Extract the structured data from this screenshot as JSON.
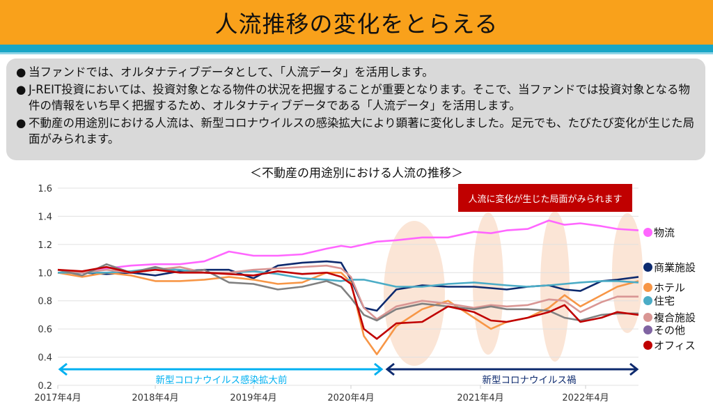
{
  "header": {
    "title": "人流推移の変化をとらえる"
  },
  "bullets": [
    {
      "mark": "●",
      "text": "当ファンドでは、オルタナティブデータとして、「人流データ」を活用します。"
    },
    {
      "mark": "●",
      "text": "J-REIT投資においては、投資対象となる物件の状況を把握することが重要となります。そこで、当ファンドでは投資対象となる物件の情報をいち早く把握するため、オルタナティブデータである「人流データ」を活用します。"
    },
    {
      "mark": "●",
      "text": "不動産の用途別における人流は、新型コロナウイルスの感染拡大により顕著に変化しました。足元でも、たびたび変化が生じた局面がみられます。"
    }
  ],
  "chart_data": {
    "type": "line",
    "title": "＜不動産の用途別における人流の推移＞",
    "annotation": "人流に変化が生じた局面がみられます",
    "period_labels": {
      "before": "新型コロナウイルス感染拡大前",
      "during": "新型コロナウイルス禍"
    },
    "ylim": [
      0.2,
      1.6
    ],
    "yticks": [
      "0.2",
      "0.4",
      "0.6",
      "0.8",
      "1.0",
      "1.2",
      "1.4",
      "1.6"
    ],
    "xticks": [
      "2017年4月",
      "2018年4月",
      "2019年4月",
      "2020年4月",
      "2021年4月",
      "2022年4月"
    ],
    "x": [
      2017.25,
      2017.5,
      2017.75,
      2018.0,
      2018.25,
      2018.5,
      2018.75,
      2019.0,
      2019.25,
      2019.5,
      2019.75,
      2020.0,
      2020.15,
      2020.25,
      2020.35,
      2020.45,
      2020.6,
      2020.8,
      2021.0,
      2021.2,
      2021.35,
      2021.5,
      2021.7,
      2021.9,
      2022.05,
      2022.2,
      2022.4,
      2022.55,
      2022.75
    ],
    "series": [
      {
        "name": "物流",
        "color": "#ff66ff",
        "legend_color": "#ff66ff",
        "values": [
          1.0,
          1.0,
          1.03,
          1.05,
          1.06,
          1.06,
          1.08,
          1.15,
          1.12,
          1.12,
          1.13,
          1.17,
          1.19,
          1.18,
          1.2,
          1.22,
          1.23,
          1.25,
          1.25,
          1.29,
          1.28,
          1.3,
          1.31,
          1.37,
          1.34,
          1.35,
          1.33,
          1.31,
          1.3
        ]
      },
      {
        "name": "商業施設",
        "color": "#0d2a6e",
        "legend_color": "#0d2a6e",
        "values": [
          1.0,
          1.0,
          0.99,
          1.0,
          0.98,
          1.01,
          1.02,
          1.02,
          0.96,
          1.05,
          1.07,
          1.08,
          1.07,
          0.95,
          0.75,
          0.73,
          0.88,
          0.91,
          0.9,
          0.9,
          0.89,
          0.88,
          0.9,
          0.91,
          0.88,
          0.87,
          0.94,
          0.95,
          0.97
        ]
      },
      {
        "name": "ホテル",
        "color": "#f79646",
        "legend_color": "#f79646",
        "values": [
          1.0,
          0.97,
          1.0,
          0.98,
          0.94,
          0.94,
          0.95,
          0.97,
          0.95,
          0.92,
          0.93,
          1.0,
          1.0,
          0.93,
          0.55,
          0.42,
          0.62,
          0.74,
          0.8,
          0.68,
          0.6,
          0.65,
          0.68,
          0.75,
          0.84,
          0.76,
          0.84,
          0.9,
          0.94
        ]
      },
      {
        "name": "住宅",
        "color": "#4bacc6",
        "legend_color": "#4bacc6",
        "values": [
          1.0,
          1.0,
          1.0,
          1.01,
          1.03,
          1.02,
          1.0,
          1.0,
          1.01,
          0.99,
          0.96,
          0.95,
          0.94,
          0.95,
          0.95,
          0.93,
          0.9,
          0.9,
          0.92,
          0.93,
          0.92,
          0.91,
          0.9,
          0.91,
          0.92,
          0.93,
          0.94,
          0.94,
          0.93
        ]
      },
      {
        "name": "複合施設",
        "color": "#d99694",
        "legend_color": "#d99694",
        "values": [
          1.02,
          1.0,
          1.02,
          1.0,
          1.02,
          1.04,
          1.0,
          1.0,
          1.02,
          1.03,
          1.04,
          1.05,
          1.03,
          0.97,
          0.75,
          0.67,
          0.76,
          0.8,
          0.78,
          0.75,
          0.77,
          0.76,
          0.77,
          0.81,
          0.8,
          0.72,
          0.79,
          0.83,
          0.83
        ]
      },
      {
        "name": "その他",
        "color": "#808080",
        "legend_color": "#8064a2",
        "values": [
          1.02,
          0.98,
          1.06,
          1.0,
          1.04,
          1.0,
          1.02,
          0.93,
          0.92,
          0.88,
          0.9,
          0.94,
          0.9,
          0.82,
          0.7,
          0.66,
          0.74,
          0.78,
          0.76,
          0.74,
          0.76,
          0.74,
          0.74,
          0.73,
          0.68,
          0.66,
          0.7,
          0.71,
          0.71
        ]
      },
      {
        "name": "オフィス",
        "color": "#c00000",
        "legend_color": "#c00000",
        "values": [
          1.02,
          1.01,
          1.04,
          1.0,
          1.02,
          1.0,
          1.0,
          0.99,
          0.98,
          1.01,
          0.99,
          1.0,
          0.97,
          0.92,
          0.6,
          0.53,
          0.64,
          0.65,
          0.76,
          0.72,
          0.66,
          0.65,
          0.68,
          0.72,
          0.77,
          0.65,
          0.68,
          0.72,
          0.7
        ]
      }
    ]
  }
}
